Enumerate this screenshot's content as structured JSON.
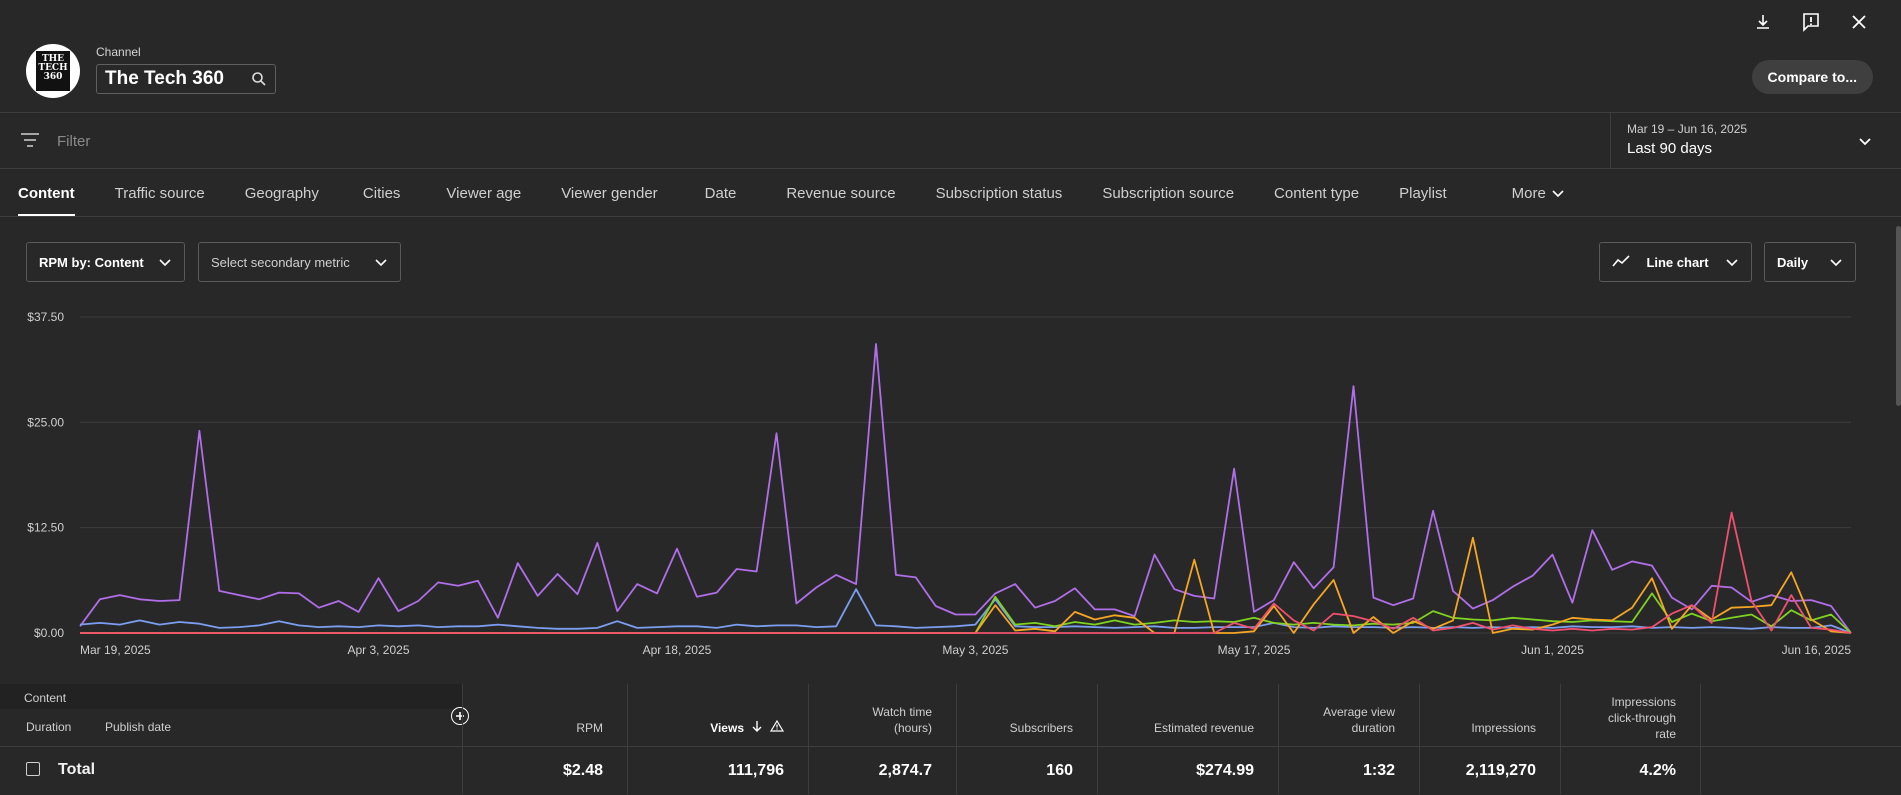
{
  "header": {
    "channel_label": "Channel",
    "channel_name": "The Tech 360",
    "avatar_text": "THE TECH 360",
    "compare_label": "Compare to...",
    "icons": [
      "download-icon",
      "feedback-icon",
      "close-icon"
    ]
  },
  "filter": {
    "placeholder": "Filter"
  },
  "date": {
    "range": "Mar 19 – Jun 16, 2025",
    "label": "Last 90 days"
  },
  "tabs": [
    {
      "label": "Content"
    },
    {
      "label": "Traffic source"
    },
    {
      "label": "Geography"
    },
    {
      "label": "Cities"
    },
    {
      "label": "Viewer age"
    },
    {
      "label": "Viewer gender"
    },
    {
      "label": "Date"
    },
    {
      "label": "Revenue source"
    },
    {
      "label": "Subscription status"
    },
    {
      "label": "Subscription source"
    },
    {
      "label": "Content type"
    },
    {
      "label": "Playlist"
    },
    {
      "label": "More"
    }
  ],
  "controls": {
    "primary_metric": "RPM by: Content",
    "secondary_metric": "Select secondary metric",
    "chart_type": "Line chart",
    "interval": "Daily"
  },
  "colors": {
    "purple": "#b06ee8",
    "blue": "#7c9ef0",
    "green": "#7ed321",
    "orange": "#f5a623",
    "red": "#f0506e"
  },
  "chart_data": {
    "type": "line",
    "y_ticks": [
      "$0.00",
      "$12.50",
      "$25.00",
      "$37.50"
    ],
    "ylim": [
      0,
      37.5
    ],
    "x_ticks": [
      "Mar 19, 2025",
      "Apr 3, 2025",
      "Apr 18, 2025",
      "May 3, 2025",
      "May 17, 2025",
      "Jun 1, 2025",
      "Jun 16, 2025"
    ],
    "x_tick_index": [
      0,
      15,
      30,
      45,
      59,
      74,
      89
    ],
    "grid": true,
    "series": [
      {
        "color": "#b06ee8",
        "values": [
          0.8,
          4,
          4.5,
          4,
          3.8,
          3.9,
          24,
          5,
          4.5,
          4,
          4.8,
          4.7,
          3,
          3.8,
          2.5,
          6.5,
          2.6,
          3.8,
          6,
          5.6,
          6.2,
          1.8,
          8.3,
          4.4,
          7,
          4.6,
          10.7,
          2.6,
          5.8,
          4.7,
          10,
          4.3,
          4.8,
          7.6,
          7.3,
          23.7,
          3.5,
          5.4,
          6.9,
          5.8,
          34.3,
          6.9,
          6.6,
          3.2,
          2.2,
          2.2,
          4.7,
          5.8,
          3,
          3.8,
          5.3,
          2.8,
          2.8,
          2,
          9.3,
          5.2,
          4.4,
          4.1,
          19.5,
          2.5,
          3.9,
          8.4,
          5.3,
          7.8,
          29.3,
          4.2,
          3.3,
          4.1,
          14.5,
          5,
          2.9,
          3.9,
          5.5,
          6.8,
          9.3,
          3.6,
          12.2,
          7.5,
          8.5,
          8,
          4.2,
          2.8,
          5.6,
          5.4,
          3.7,
          4.5,
          3.8,
          3.9,
          3.2,
          0
        ]
      },
      {
        "color": "#7c9ef0",
        "values": [
          1,
          1.2,
          1,
          1.5,
          1,
          1.3,
          1.1,
          0.6,
          0.7,
          0.9,
          1.4,
          0.9,
          0.7,
          0.8,
          0.7,
          0.9,
          0.8,
          0.9,
          0.7,
          0.8,
          0.8,
          1,
          0.8,
          0.6,
          0.5,
          0.5,
          0.6,
          1.4,
          0.6,
          0.7,
          0.8,
          0.8,
          0.6,
          1,
          0.8,
          0.9,
          0.9,
          0.7,
          0.8,
          5.2,
          0.9,
          0.8,
          0.6,
          0.7,
          0.8,
          1,
          4,
          0.8,
          0.7,
          0.7,
          0.8,
          0.7,
          0.6,
          0.7,
          0.8,
          0.6,
          0.6,
          0.7,
          0.7,
          0.7,
          1.2,
          0.7,
          0.6,
          0.8,
          0.7,
          0.7,
          0.6,
          0.7,
          0.6,
          0.7,
          0.6,
          0.7,
          0.6,
          0.7,
          0.6,
          0.8,
          0.7,
          0.7,
          0.8,
          0.6,
          0.7,
          0.6,
          0.7,
          0.6,
          0.5,
          0.7,
          0.6,
          0.6,
          0.9,
          0
        ]
      },
      {
        "color": "#7ed321",
        "values": [
          0,
          0,
          0,
          0,
          0,
          0,
          0,
          0,
          0,
          0,
          0,
          0,
          0,
          0,
          0,
          0,
          0,
          0,
          0,
          0,
          0,
          0,
          0,
          0,
          0,
          0,
          0,
          0,
          0,
          0,
          0,
          0,
          0,
          0,
          0,
          0,
          0,
          0,
          0,
          0,
          0,
          0,
          0,
          0,
          0,
          0,
          4.3,
          1,
          1.2,
          0.8,
          1.3,
          1,
          1.5,
          1,
          1.2,
          1.5,
          1.3,
          1.4,
          1.3,
          1.8,
          1.2,
          1,
          1.2,
          1,
          0.9,
          1.1,
          1,
          1.2,
          2.6,
          1.8,
          1.6,
          1.5,
          1.8,
          1.6,
          1.4,
          1.3,
          1.5,
          1.4,
          1.3,
          4.7,
          1.3,
          2.3,
          1.4,
          1.8,
          2.2,
          0.8,
          2.7,
          1.5,
          2.2,
          0
        ]
      },
      {
        "color": "#f5a623",
        "values": [
          0,
          0,
          0,
          0,
          0,
          0,
          0,
          0,
          0,
          0,
          0,
          0,
          0,
          0,
          0,
          0,
          0,
          0,
          0,
          0,
          0,
          0,
          0,
          0,
          0,
          0,
          0,
          0,
          0,
          0,
          0,
          0,
          0,
          0,
          0,
          0,
          0,
          0,
          0,
          0,
          0,
          0,
          0,
          0,
          0,
          0,
          3.3,
          0.3,
          0.5,
          0.2,
          2.5,
          1.6,
          2.1,
          1.8,
          0,
          0,
          8.7,
          0,
          0,
          0.2,
          3.2,
          0,
          3.4,
          6.3,
          0,
          1.9,
          0,
          1.4,
          0.5,
          1.5,
          11.3,
          0,
          0.5,
          0.4,
          1,
          1.8,
          1.6,
          1.5,
          3,
          6.5,
          0.5,
          3.3,
          1.6,
          3,
          3.1,
          3.3,
          7.2,
          1.6,
          0.2,
          0
        ]
      },
      {
        "color": "#f0506e",
        "values": [
          0,
          0,
          0,
          0,
          0,
          0,
          0,
          0,
          0,
          0,
          0,
          0,
          0,
          0,
          0,
          0,
          0,
          0,
          0,
          0,
          0,
          0,
          0,
          0,
          0,
          0,
          0,
          0,
          0,
          0,
          0,
          0,
          0,
          0,
          0,
          0,
          0,
          0,
          0,
          0,
          0,
          0,
          0,
          0,
          0,
          0,
          0,
          0,
          0,
          0,
          0,
          0,
          0,
          0,
          0,
          0,
          0,
          0,
          1.2,
          0.5,
          3.5,
          1.5,
          0.3,
          2.3,
          2,
          1.4,
          0.5,
          1.8,
          0.3,
          0.6,
          1.2,
          0.4,
          0.9,
          0.5,
          0.3,
          0.5,
          0.3,
          0.5,
          0.4,
          0.7,
          2.3,
          3.3,
          1.2,
          14.3,
          3.8,
          0.3,
          4.5,
          0.6,
          0.4,
          0
        ]
      }
    ]
  },
  "table": {
    "left_header": "Content",
    "sub_headers": [
      "Duration",
      "Publish date"
    ],
    "columns": [
      {
        "label": "RPM"
      },
      {
        "label": "Views"
      },
      {
        "label": "Watch time (hours)"
      },
      {
        "label": "Subscribers"
      },
      {
        "label": "Estimated revenue"
      },
      {
        "label": "Average view duration"
      },
      {
        "label": "Impressions"
      },
      {
        "label": "Impressions click-through rate"
      }
    ],
    "total": {
      "label": "Total",
      "values": [
        "$2.48",
        "111,796",
        "2,874.7",
        "160",
        "$274.99",
        "1:32",
        "2,119,270",
        "4.2%"
      ]
    }
  }
}
